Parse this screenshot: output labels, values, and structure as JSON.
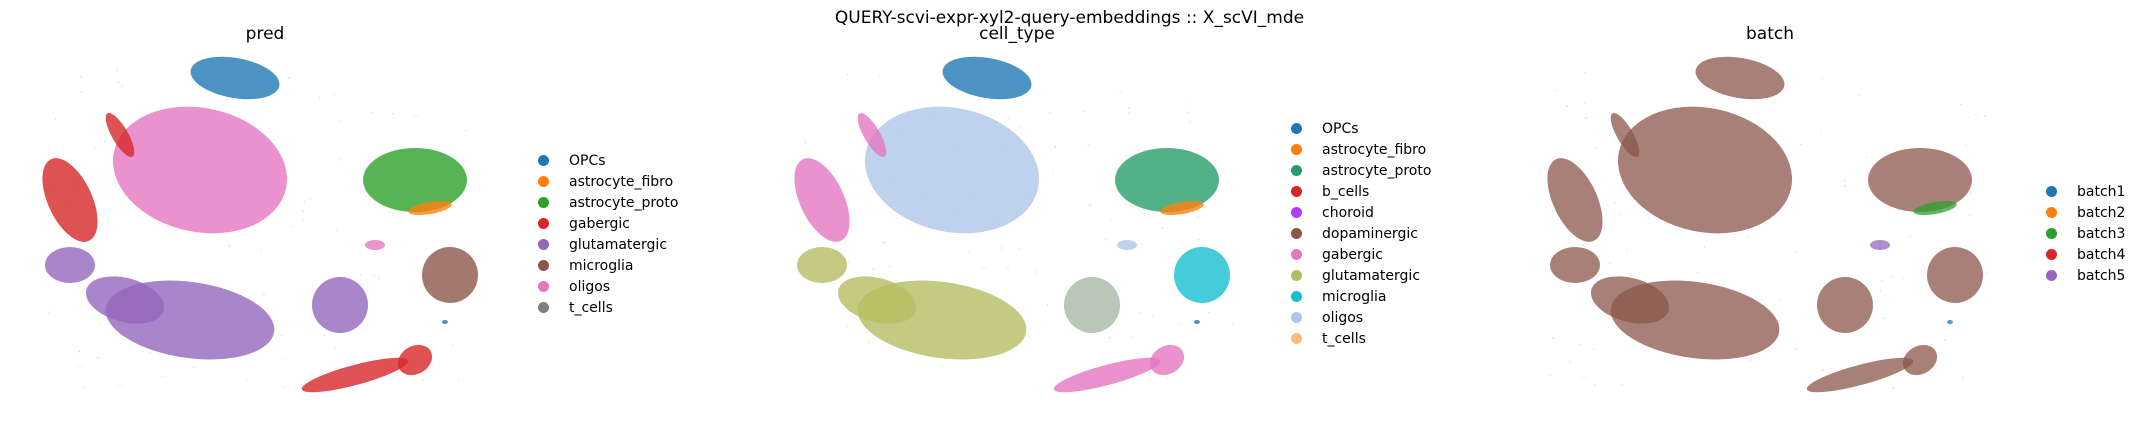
{
  "figure": {
    "suptitle": "QUERY-scvi-expr-xyl2-query-embeddings :: X_scVI_mde"
  },
  "chart_data": [
    {
      "type": "scatter",
      "title": "pred",
      "xlabel": "",
      "ylabel": "",
      "grid": false,
      "legend_position": "right",
      "legend": [
        {
          "label": "OPCs",
          "color": "#1f77b4"
        },
        {
          "label": "astrocyte_fibro",
          "color": "#ff7f0e"
        },
        {
          "label": "astrocyte_proto",
          "color": "#2ca02c"
        },
        {
          "label": "gabergic",
          "color": "#d62728"
        },
        {
          "label": "glutamatergic",
          "color": "#9467bd"
        },
        {
          "label": "microglia",
          "color": "#8c564b"
        },
        {
          "label": "oligos",
          "color": "#e377c2"
        },
        {
          "label": "t_cells",
          "color": "#7f7f7f"
        }
      ],
      "clusters": [
        "OPCs",
        "oligos",
        "astrocyte_proto",
        "astrocyte_fibro",
        "glutamatergic",
        "gabergic",
        "microglia",
        "t_cells"
      ]
    },
    {
      "type": "scatter",
      "title": "cell_type",
      "xlabel": "",
      "ylabel": "",
      "grid": false,
      "legend_position": "right",
      "legend": [
        {
          "label": "OPCs",
          "color": "#1f77b4"
        },
        {
          "label": "astrocyte_fibro",
          "color": "#ff7f0e"
        },
        {
          "label": "astrocyte_proto",
          "color": "#279e68"
        },
        {
          "label": "b_cells",
          "color": "#d62728"
        },
        {
          "label": "choroid",
          "color": "#aa40fc"
        },
        {
          "label": "dopaminergic",
          "color": "#8c564b"
        },
        {
          "label": "gabergic",
          "color": "#e377c2"
        },
        {
          "label": "glutamatergic",
          "color": "#b5bd61"
        },
        {
          "label": "microglia",
          "color": "#17becf"
        },
        {
          "label": "oligos",
          "color": "#aec7e8"
        },
        {
          "label": "t_cells",
          "color": "#ffbb78"
        }
      ]
    },
    {
      "type": "scatter",
      "title": "batch",
      "xlabel": "",
      "ylabel": "",
      "grid": false,
      "legend_position": "right",
      "legend": [
        {
          "label": "batch1",
          "color": "#1f77b4"
        },
        {
          "label": "batch2",
          "color": "#ff7f0e"
        },
        {
          "label": "batch3",
          "color": "#2ca02c"
        },
        {
          "label": "batch4",
          "color": "#d62728"
        },
        {
          "label": "batch5",
          "color": "#9467bd"
        }
      ]
    }
  ]
}
